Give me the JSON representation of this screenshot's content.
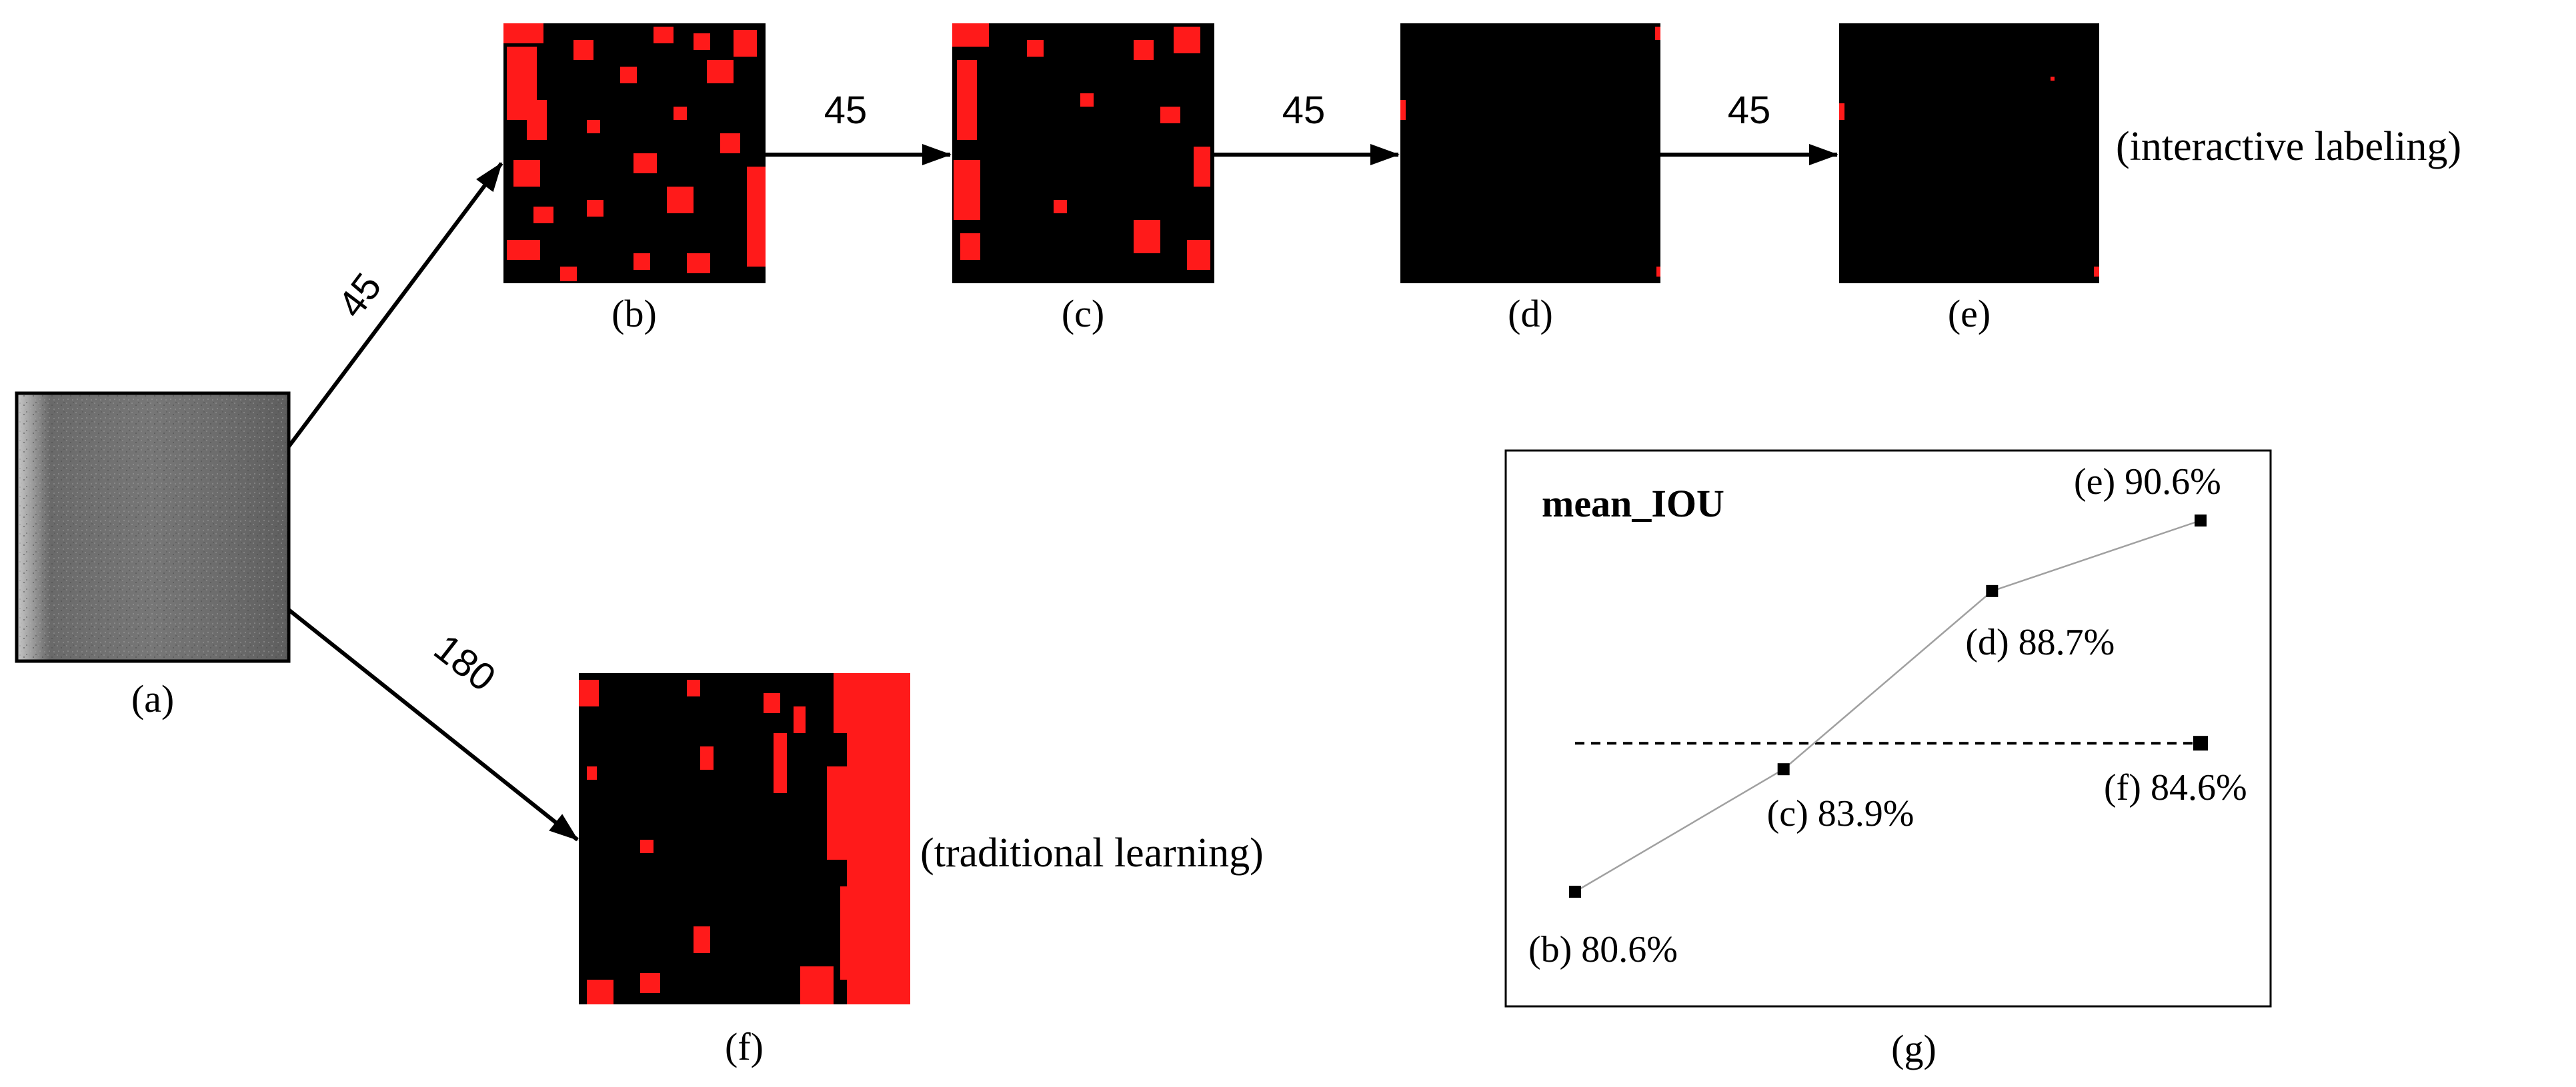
{
  "panels": {
    "a": {
      "caption": "(a)"
    },
    "b": {
      "caption": "(b)"
    },
    "c": {
      "caption": "(c)"
    },
    "d": {
      "caption": "(d)"
    },
    "e": {
      "caption": "(e)"
    },
    "f": {
      "caption": "(f)"
    },
    "g": {
      "caption": "(g)"
    }
  },
  "arrows": {
    "a_to_b": "45",
    "b_to_c": "45",
    "c_to_d": "45",
    "d_to_e": "45",
    "a_to_f": "180"
  },
  "notes": {
    "interactive": "(interactive labeling)",
    "traditional": "(traditional learning)"
  },
  "colors": {
    "mask_red": "#ff1a1a",
    "mask_bg": "#000000",
    "input_gray": "#6e6e6e"
  },
  "chart_data": {
    "type": "line",
    "title": "mean_IOU",
    "series": [
      {
        "points": [
          {
            "x": 1,
            "y": 80.6,
            "label": "(b) 80.6%"
          },
          {
            "x": 2,
            "y": 83.9,
            "label": "(c) 83.9%"
          },
          {
            "x": 3,
            "y": 88.7,
            "label": "(d) 88.7%"
          },
          {
            "x": 4,
            "y": 90.6,
            "label": "(e) 90.6%"
          }
        ]
      }
    ],
    "reference": {
      "y": 84.6,
      "label": "(f) 84.6%",
      "style": "dashed"
    },
    "xlim": [
      1,
      4
    ],
    "ylim": [
      80.6,
      90.6
    ],
    "axes_visible": false,
    "grid": false
  }
}
